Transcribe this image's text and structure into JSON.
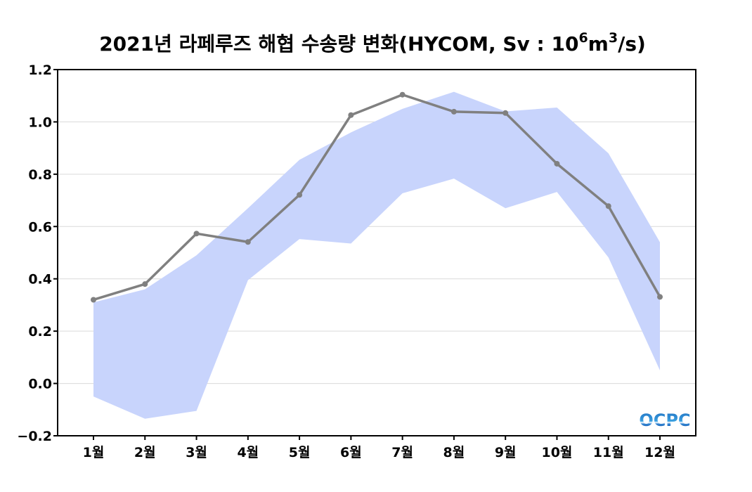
{
  "chart_data": {
    "type": "line",
    "title_main": "2021년 라페루즈 해협 수송량 변화(HYCOM, Sv : 10",
    "title_sup1": "6",
    "title_mid": "m",
    "title_sup2": "3",
    "title_end": "/s)",
    "categories": [
      "1월",
      "2월",
      "3월",
      "4월",
      "5월",
      "6월",
      "7월",
      "8월",
      "9월",
      "10월",
      "11월",
      "12월"
    ],
    "series": [
      {
        "name": "2021",
        "values": [
          0.32,
          0.38,
          0.573,
          0.541,
          0.721,
          1.026,
          1.104,
          1.039,
          1.034,
          0.84,
          0.678,
          0.331
        ]
      }
    ],
    "band": {
      "upper": [
        0.31,
        0.36,
        0.49,
        0.67,
        0.855,
        0.96,
        1.05,
        1.115,
        1.04,
        1.055,
        0.88,
        0.54
      ],
      "lower": [
        -0.05,
        -0.135,
        -0.105,
        0.395,
        0.552,
        0.535,
        0.727,
        0.783,
        0.67,
        0.732,
        0.482,
        0.05
      ]
    },
    "ylim": [
      -0.2,
      1.2
    ],
    "yticks": [
      "−0.2",
      "0.0",
      "0.2",
      "0.4",
      "0.6",
      "0.8",
      "1.0",
      "1.2"
    ],
    "ytick_values": [
      -0.2,
      0,
      0.2,
      0.4,
      0.6,
      0.8,
      1.0,
      1.2
    ],
    "grid": true,
    "colors": {
      "line": "#808080",
      "band": "#c8d4fc",
      "grid": "#d9d9d9"
    }
  },
  "logo": "OCPC"
}
